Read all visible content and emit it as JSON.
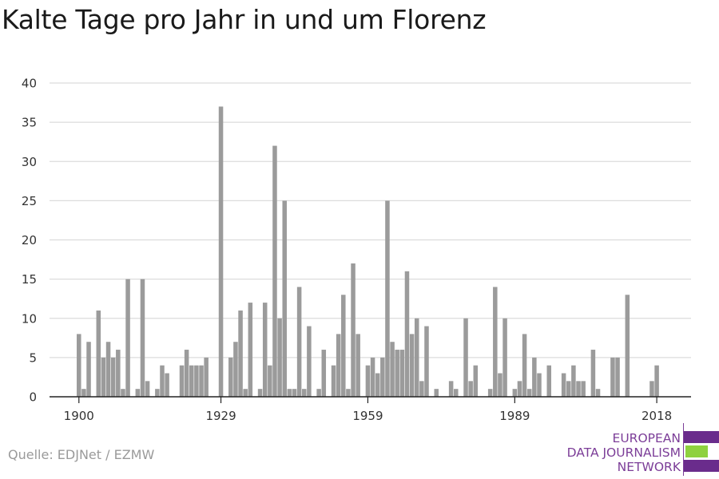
{
  "title": "Kalte Tage pro Jahr in und um Florenz",
  "source": "Quelle: EDJNet / EZMW",
  "logo": {
    "line1": "EUROPEAN",
    "line2": "DATA JOURNALISM",
    "line3": "NETWORK"
  },
  "colors": {
    "bar": "#9b9b9b",
    "grid": "#dcdcdc",
    "axis": "#222222",
    "logo_purple": "#6a2c8c",
    "logo_green": "#8fd13f"
  },
  "chart_data": {
    "type": "bar",
    "x_ticks": [
      1900,
      1929,
      1959,
      1989,
      2018
    ],
    "y_ticks": [
      0,
      5,
      10,
      15,
      20,
      25,
      30,
      35,
      40
    ],
    "ylim": [
      0,
      40
    ],
    "xlim": [
      1894,
      2025
    ],
    "grid": true,
    "categories": [
      1900,
      1901,
      1902,
      1903,
      1904,
      1905,
      1906,
      1907,
      1908,
      1909,
      1910,
      1911,
      1912,
      1913,
      1914,
      1915,
      1916,
      1917,
      1918,
      1919,
      1920,
      1921,
      1922,
      1923,
      1924,
      1925,
      1926,
      1927,
      1928,
      1929,
      1930,
      1931,
      1932,
      1933,
      1934,
      1935,
      1936,
      1937,
      1938,
      1939,
      1940,
      1941,
      1942,
      1943,
      1944,
      1945,
      1946,
      1947,
      1948,
      1949,
      1950,
      1951,
      1952,
      1953,
      1954,
      1955,
      1956,
      1957,
      1958,
      1959,
      1960,
      1961,
      1962,
      1963,
      1964,
      1965,
      1966,
      1967,
      1968,
      1969,
      1970,
      1971,
      1972,
      1973,
      1974,
      1975,
      1976,
      1977,
      1978,
      1979,
      1980,
      1981,
      1982,
      1983,
      1984,
      1985,
      1986,
      1987,
      1988,
      1989,
      1990,
      1991,
      1992,
      1993,
      1994,
      1995,
      1996,
      1997,
      1998,
      1999,
      2000,
      2001,
      2002,
      2003,
      2004,
      2005,
      2006,
      2007,
      2008,
      2009,
      2010,
      2011,
      2012,
      2013,
      2014,
      2015,
      2016,
      2017,
      2018
    ],
    "values": [
      8,
      1,
      7,
      0,
      11,
      5,
      7,
      5,
      6,
      1,
      15,
      0,
      1,
      15,
      2,
      0,
      1,
      4,
      3,
      0,
      0,
      4,
      6,
      4,
      4,
      4,
      5,
      0,
      0,
      37,
      0,
      5,
      7,
      11,
      1,
      12,
      0,
      1,
      12,
      4,
      32,
      10,
      25,
      1,
      1,
      14,
      1,
      9,
      0,
      1,
      6,
      0,
      4,
      8,
      13,
      1,
      17,
      8,
      0,
      4,
      5,
      3,
      5,
      25,
      7,
      6,
      6,
      16,
      8,
      10,
      2,
      9,
      0,
      1,
      0,
      0,
      2,
      1,
      0,
      10,
      2,
      4,
      0,
      0,
      1,
      14,
      3,
      10,
      0,
      1,
      2,
      8,
      1,
      5,
      3,
      0,
      4,
      0,
      0,
      3,
      2,
      4,
      2,
      2,
      0,
      6,
      1,
      0,
      0,
      5,
      5,
      0,
      13,
      0,
      0,
      0,
      0,
      2,
      4
    ]
  }
}
